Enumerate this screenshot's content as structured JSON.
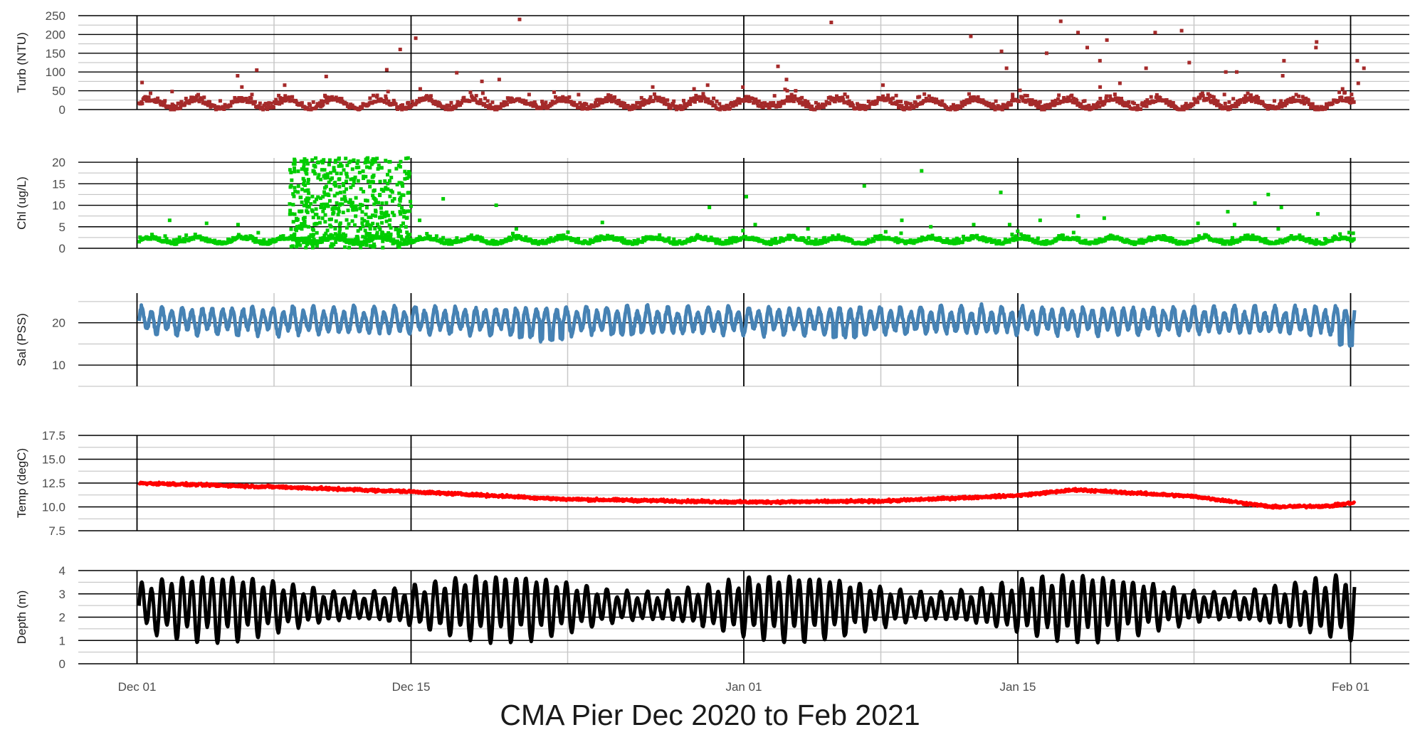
{
  "figure": {
    "caption": "CMA Pier Dec 2020 to Feb 2021",
    "x_axis": {
      "type": "date",
      "range": [
        "2020-11-28",
        "2021-02-04"
      ],
      "ticks": [
        {
          "label": "Dec 01",
          "date": "2020-12-01"
        },
        {
          "label": "Dec 15",
          "date": "2020-12-15"
        },
        {
          "label": "Jan 01",
          "date": "2021-01-01"
        },
        {
          "label": "Jan 15",
          "date": "2021-01-15"
        },
        {
          "label": "Feb 01",
          "date": "2021-02-01"
        }
      ],
      "minor_grid_dates": [
        "2020-12-08",
        "2020-12-23",
        "2021-01-08",
        "2021-01-24"
      ],
      "grid": true
    }
  },
  "chart_data": [
    {
      "type": "scatter",
      "ylabel": "Turb (NTU)",
      "color": "#a52a2a",
      "ylim": [
        0,
        250
      ],
      "yticks": [
        "0",
        "50",
        "100",
        "150",
        "200",
        "250"
      ],
      "ytick_values": [
        0,
        50,
        100,
        150,
        200,
        250
      ],
      "minor_ygrid": [
        25,
        75,
        125,
        175,
        225
      ],
      "baseline": {
        "center": 10,
        "amp": 12,
        "noise": 14
      },
      "points": [
        [
          "2020-12-01",
          34
        ],
        [
          "2020-12-01",
          72
        ],
        [
          "2020-12-02",
          48
        ],
        [
          "2020-12-06",
          60
        ],
        [
          "2020-12-06",
          90
        ],
        [
          "2020-12-07",
          105
        ],
        [
          "2020-12-08",
          65
        ],
        [
          "2020-12-10",
          88
        ],
        [
          "2020-12-13",
          106
        ],
        [
          "2020-12-14",
          160
        ],
        [
          "2020-12-15",
          55
        ],
        [
          "2020-12-15",
          190
        ],
        [
          "2020-12-17",
          98
        ],
        [
          "2020-12-18",
          75
        ],
        [
          "2020-12-19",
          80
        ],
        [
          "2020-12-20",
          240
        ],
        [
          "2020-12-21",
          40
        ],
        [
          "2020-12-27",
          60
        ],
        [
          "2020-12-29",
          55
        ],
        [
          "2020-12-30",
          65
        ],
        [
          "2021-01-02",
          115
        ],
        [
          "2021-01-03",
          80
        ],
        [
          "2021-01-03",
          50
        ],
        [
          "2021-01-05",
          232
        ],
        [
          "2021-01-08",
          65
        ],
        [
          "2021-01-12",
          195
        ],
        [
          "2021-01-14",
          155
        ],
        [
          "2021-01-14",
          110
        ],
        [
          "2021-01-14",
          40
        ],
        [
          "2021-01-16",
          150
        ],
        [
          "2021-01-17",
          235
        ],
        [
          "2021-01-18",
          205
        ],
        [
          "2021-01-18",
          165
        ],
        [
          "2021-01-19",
          185
        ],
        [
          "2021-01-19",
          130
        ],
        [
          "2021-01-19",
          60
        ],
        [
          "2021-01-20",
          70
        ],
        [
          "2021-01-21",
          110
        ],
        [
          "2021-01-22",
          205
        ],
        [
          "2021-01-23",
          210
        ],
        [
          "2021-01-23",
          125
        ],
        [
          "2021-01-25",
          100
        ],
        [
          "2021-01-26",
          100
        ],
        [
          "2021-01-28",
          130
        ],
        [
          "2021-01-28",
          90
        ],
        [
          "2021-01-30",
          180
        ],
        [
          "2021-01-30",
          165
        ],
        [
          "2021-02-01",
          130
        ],
        [
          "2021-02-01",
          110
        ],
        [
          "2021-02-01",
          70
        ],
        [
          "2021-01-31",
          55
        ]
      ]
    },
    {
      "type": "scatter",
      "ylabel": "Chl (ug/L)",
      "color": "#00cd00",
      "ylim": [
        0,
        21
      ],
      "yticks": [
        "0",
        "5",
        "10",
        "15",
        "20"
      ],
      "ytick_values": [
        0,
        5,
        10,
        15,
        20
      ],
      "minor_ygrid": [
        2.5,
        7.5,
        12.5,
        17.5
      ],
      "baseline": {
        "center": 1.5,
        "amp": 0.6,
        "noise": 0.8
      },
      "bloom": {
        "start": "2020-12-08",
        "end": "2020-12-15",
        "max": 21
      },
      "points": [
        [
          "2020-12-02",
          6.5
        ],
        [
          "2020-12-04",
          5.8
        ],
        [
          "2020-12-06",
          5.5
        ],
        [
          "2020-12-15",
          6.5
        ],
        [
          "2020-12-16",
          11.5
        ],
        [
          "2020-12-19",
          10
        ],
        [
          "2020-12-20",
          4.5
        ],
        [
          "2020-12-24",
          6
        ],
        [
          "2020-12-30",
          9.5
        ],
        [
          "2021-01-01",
          12
        ],
        [
          "2021-01-01",
          5.5
        ],
        [
          "2021-01-04",
          4.5
        ],
        [
          "2021-01-07",
          14.5
        ],
        [
          "2021-01-09",
          6.5
        ],
        [
          "2021-01-10",
          18
        ],
        [
          "2021-01-10",
          5
        ],
        [
          "2021-01-12",
          5.5
        ],
        [
          "2021-01-14",
          13
        ],
        [
          "2021-01-14",
          5.5
        ],
        [
          "2021-01-16",
          6.5
        ],
        [
          "2021-01-18",
          7.5
        ],
        [
          "2021-01-19",
          7
        ],
        [
          "2021-01-24",
          5.8
        ],
        [
          "2021-01-25",
          8.5
        ],
        [
          "2021-01-26",
          5.5
        ],
        [
          "2021-01-27",
          12.5
        ],
        [
          "2021-01-27",
          10.5
        ],
        [
          "2021-01-28",
          9.5
        ],
        [
          "2021-01-28",
          4.5
        ],
        [
          "2021-01-30",
          8
        ],
        [
          "2021-02-01",
          3.5
        ]
      ]
    },
    {
      "type": "line",
      "ylabel": "Sal (PSS)",
      "color": "#4682b4",
      "ylim": [
        5,
        27
      ],
      "yticks": [
        "10",
        "20"
      ],
      "ytick_values": [
        10,
        20
      ],
      "minor_ygrid": [
        5,
        15,
        25
      ],
      "signal": {
        "center": 20.5,
        "tidal_amp": 2.6,
        "period_days": 0.517,
        "noise": 0.5,
        "dips": [
          [
            "2020-12-21",
            16.5
          ],
          [
            "2020-12-22",
            15.5
          ],
          [
            "2020-12-26",
            17
          ],
          [
            "2021-01-06",
            16.5
          ],
          [
            "2021-02-01",
            14.5
          ]
        ]
      }
    },
    {
      "type": "line",
      "ylabel": "Temp (degC)",
      "color": "#ff0000",
      "ylim": [
        7.5,
        17.5
      ],
      "yticks": [
        "7.5",
        "10.0",
        "12.5",
        "15.0",
        "17.5"
      ],
      "ytick_values": [
        7.5,
        10.0,
        12.5,
        15.0,
        17.5
      ],
      "minor_ygrid": [
        8.75,
        11.25,
        13.75,
        16.25
      ],
      "trend": [
        [
          "2020-12-01",
          12.5
        ],
        [
          "2020-12-08",
          12.1
        ],
        [
          "2020-12-15",
          11.6
        ],
        [
          "2020-12-23",
          10.8
        ],
        [
          "2021-01-01",
          10.5
        ],
        [
          "2021-01-08",
          10.6
        ],
        [
          "2021-01-15",
          11.2
        ],
        [
          "2021-01-18",
          11.8
        ],
        [
          "2021-01-24",
          11.1
        ],
        [
          "2021-01-28",
          10.0
        ],
        [
          "2021-01-31",
          10.1
        ],
        [
          "2021-02-01",
          10.4
        ]
      ],
      "noise": 0.12
    },
    {
      "type": "line",
      "ylabel": "Depth (m)",
      "color": "#000000",
      "ylim": [
        0,
        4
      ],
      "yticks": [
        "0",
        "1",
        "2",
        "3",
        "4"
      ],
      "ytick_values": [
        0,
        1,
        2,
        3,
        4
      ],
      "minor_ygrid": [
        0.5,
        1.5,
        2.5,
        3.5
      ],
      "signal": {
        "center": 2.45,
        "tidal_amp": 0.85,
        "spring_amp": 0.35,
        "period_days": 0.517,
        "spring_period_days": 14.8,
        "noise": 0.04
      }
    }
  ]
}
